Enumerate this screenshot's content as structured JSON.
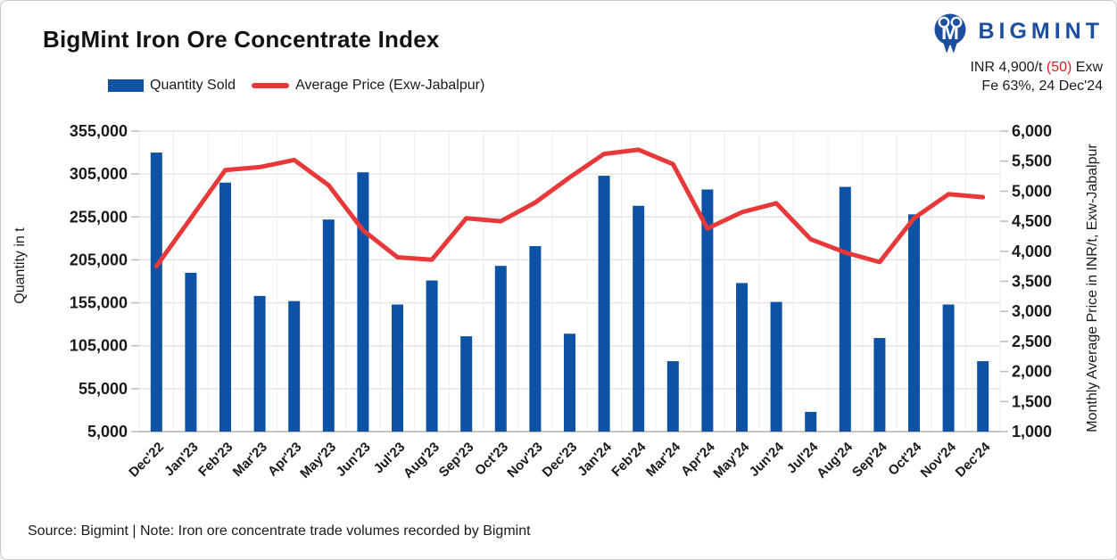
{
  "header": {
    "title": "BigMint Iron Ore Concentrate Index",
    "logo_text": "BIGMINT",
    "price_line1": {
      "prefix": "INR 4,900/t",
      "change": "(50)",
      "suffix": "Exw"
    },
    "price_line2": "Fe 63%, 24 Dec'24"
  },
  "footer": {
    "text": "Source: Bigmint | Note: Iron ore concentrate trade volumes recorded by Bigmint"
  },
  "colors": {
    "bar_blue": "#0d52a5",
    "line_red": "#e8393a",
    "logo_blue": "#1d4fa0",
    "change_red": "#e01a1a",
    "grid_h": "#e6e6e6",
    "grid_v": "#ededed",
    "axis_line": "#c4c4c4",
    "tick_dash": "#bbbbbb"
  },
  "chart_data": {
    "type": "bar+line",
    "title": "BigMint Iron Ore Concentrate Index",
    "categories": [
      "Dec'22",
      "Jan'23",
      "Feb'23",
      "Mar'23",
      "Apr'23",
      "May'23",
      "Jun'23",
      "Jul'23",
      "Aug'23",
      "Sep'23",
      "Oct'23",
      "Nov'23",
      "Dec'23",
      "Jan'24",
      "Feb'24",
      "Mar'24",
      "Apr'24",
      "May'24",
      "Jun'24",
      "Jul'24",
      "Aug'24",
      "Sep'24",
      "Oct'24",
      "Nov'24",
      "Dec'24"
    ],
    "series": [
      {
        "name": "Quantity Sold",
        "type": "bar",
        "axis": "left",
        "color": "#0d52a5",
        "values": [
          330000,
          190000,
          295000,
          163000,
          157000,
          252000,
          307000,
          153000,
          181000,
          116000,
          198000,
          221000,
          119000,
          303000,
          268000,
          87000,
          287000,
          178000,
          156000,
          28000,
          290000,
          114000,
          258000,
          153000,
          87000
        ]
      },
      {
        "name": "Average Price (Exw-Jabalpur)",
        "type": "line",
        "axis": "right",
        "color": "#e8393a",
        "values": [
          3750,
          4550,
          5350,
          5400,
          5520,
          5100,
          4350,
          3900,
          3860,
          4550,
          4500,
          4810,
          5230,
          5620,
          5690,
          5450,
          4380,
          4650,
          4800,
          4200,
          3980,
          3820,
          4550,
          4950,
          4900
        ]
      }
    ],
    "left_axis": {
      "title": "Quantity in t",
      "min": 5000,
      "max": 355000,
      "step": 50000,
      "ticks": [
        355000,
        305000,
        255000,
        205000,
        155000,
        105000,
        55000,
        5000
      ]
    },
    "right_axis": {
      "title": "Monthly Average Price in INR/t, Exw-Jabalpur",
      "min": 1000,
      "max": 6000,
      "step": 500,
      "ticks": [
        6000,
        5500,
        5000,
        4500,
        4000,
        3500,
        3000,
        2500,
        2000,
        1500,
        1000
      ]
    },
    "grid": true,
    "legend_position": "top"
  }
}
